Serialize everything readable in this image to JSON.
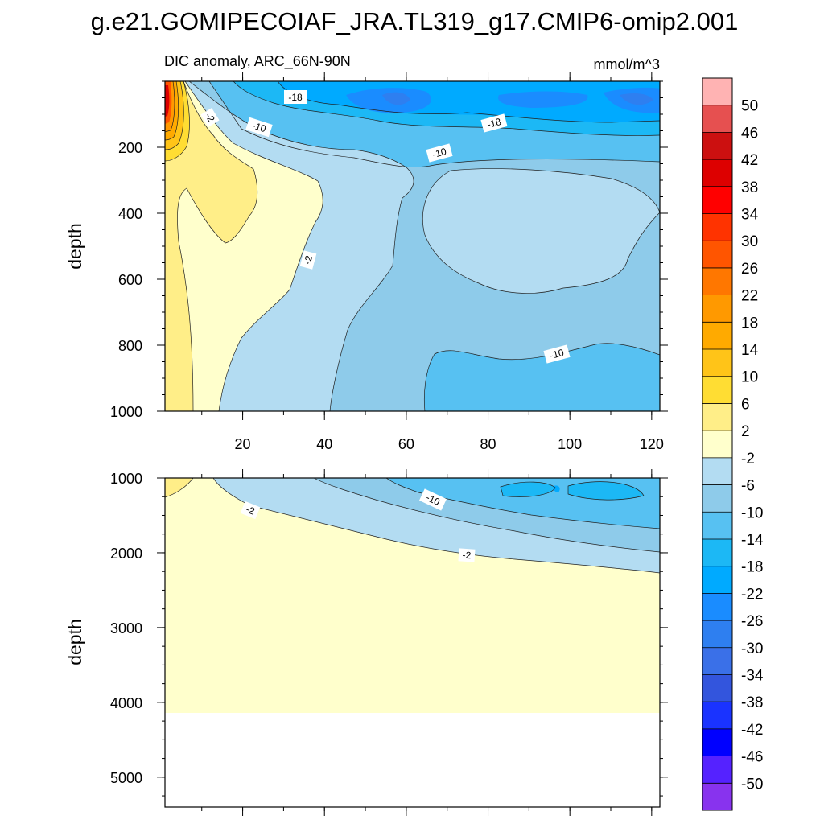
{
  "chart_data": {
    "type": "heatmap",
    "title": "g.e21.GOMIPECOIAF_JRA.TL319_g17.CMIP6-omip2.001",
    "subtitle": "DIC anomaly, ARC_66N-90N",
    "units": "mmol/m^3",
    "ylabel": "depth",
    "x": {
      "range": [
        1,
        122
      ],
      "ticks": [
        20,
        40,
        60,
        80,
        100,
        120
      ]
    },
    "panels": [
      {
        "name": "upper",
        "ylim": [
          0,
          1000
        ],
        "yticks": [
          200,
          400,
          600,
          800,
          1000
        ]
      },
      {
        "name": "lower",
        "ylim": [
          1000,
          5400
        ],
        "yticks": [
          1000,
          2000,
          3000,
          4000,
          5000
        ]
      }
    ],
    "colorbar": {
      "labels": [
        50,
        46,
        42,
        38,
        34,
        30,
        26,
        22,
        18,
        14,
        10,
        6,
        2,
        -2,
        -6,
        -10,
        -14,
        -18,
        -22,
        -26,
        -30,
        -34,
        -38,
        -42,
        -46,
        -50
      ],
      "colors": [
        "#ffb3b3",
        "#e65050",
        "#cc1010",
        "#dd0000",
        "#ff0000",
        "#ff3300",
        "#ff5500",
        "#ff7700",
        "#ff9900",
        "#ffaa00",
        "#ffc418",
        "#ffdd33",
        "#ffee88",
        "#ffffcc",
        "#b3dcf2",
        "#8ecbea",
        "#57c1f2",
        "#1cb8f5",
        "#00aaff",
        "#1a8cff",
        "#2e7ff0",
        "#3a70e8",
        "#3355dd",
        "#1a33ff",
        "#0000ff",
        "#5522ff",
        "#8833ee"
      ]
    },
    "contour_labels_upper": [
      "-18",
      "-2",
      "-10",
      "-18",
      "-10",
      "-2",
      "-10"
    ],
    "contour_labels_lower": [
      "-10",
      "-2",
      "-2"
    ]
  }
}
